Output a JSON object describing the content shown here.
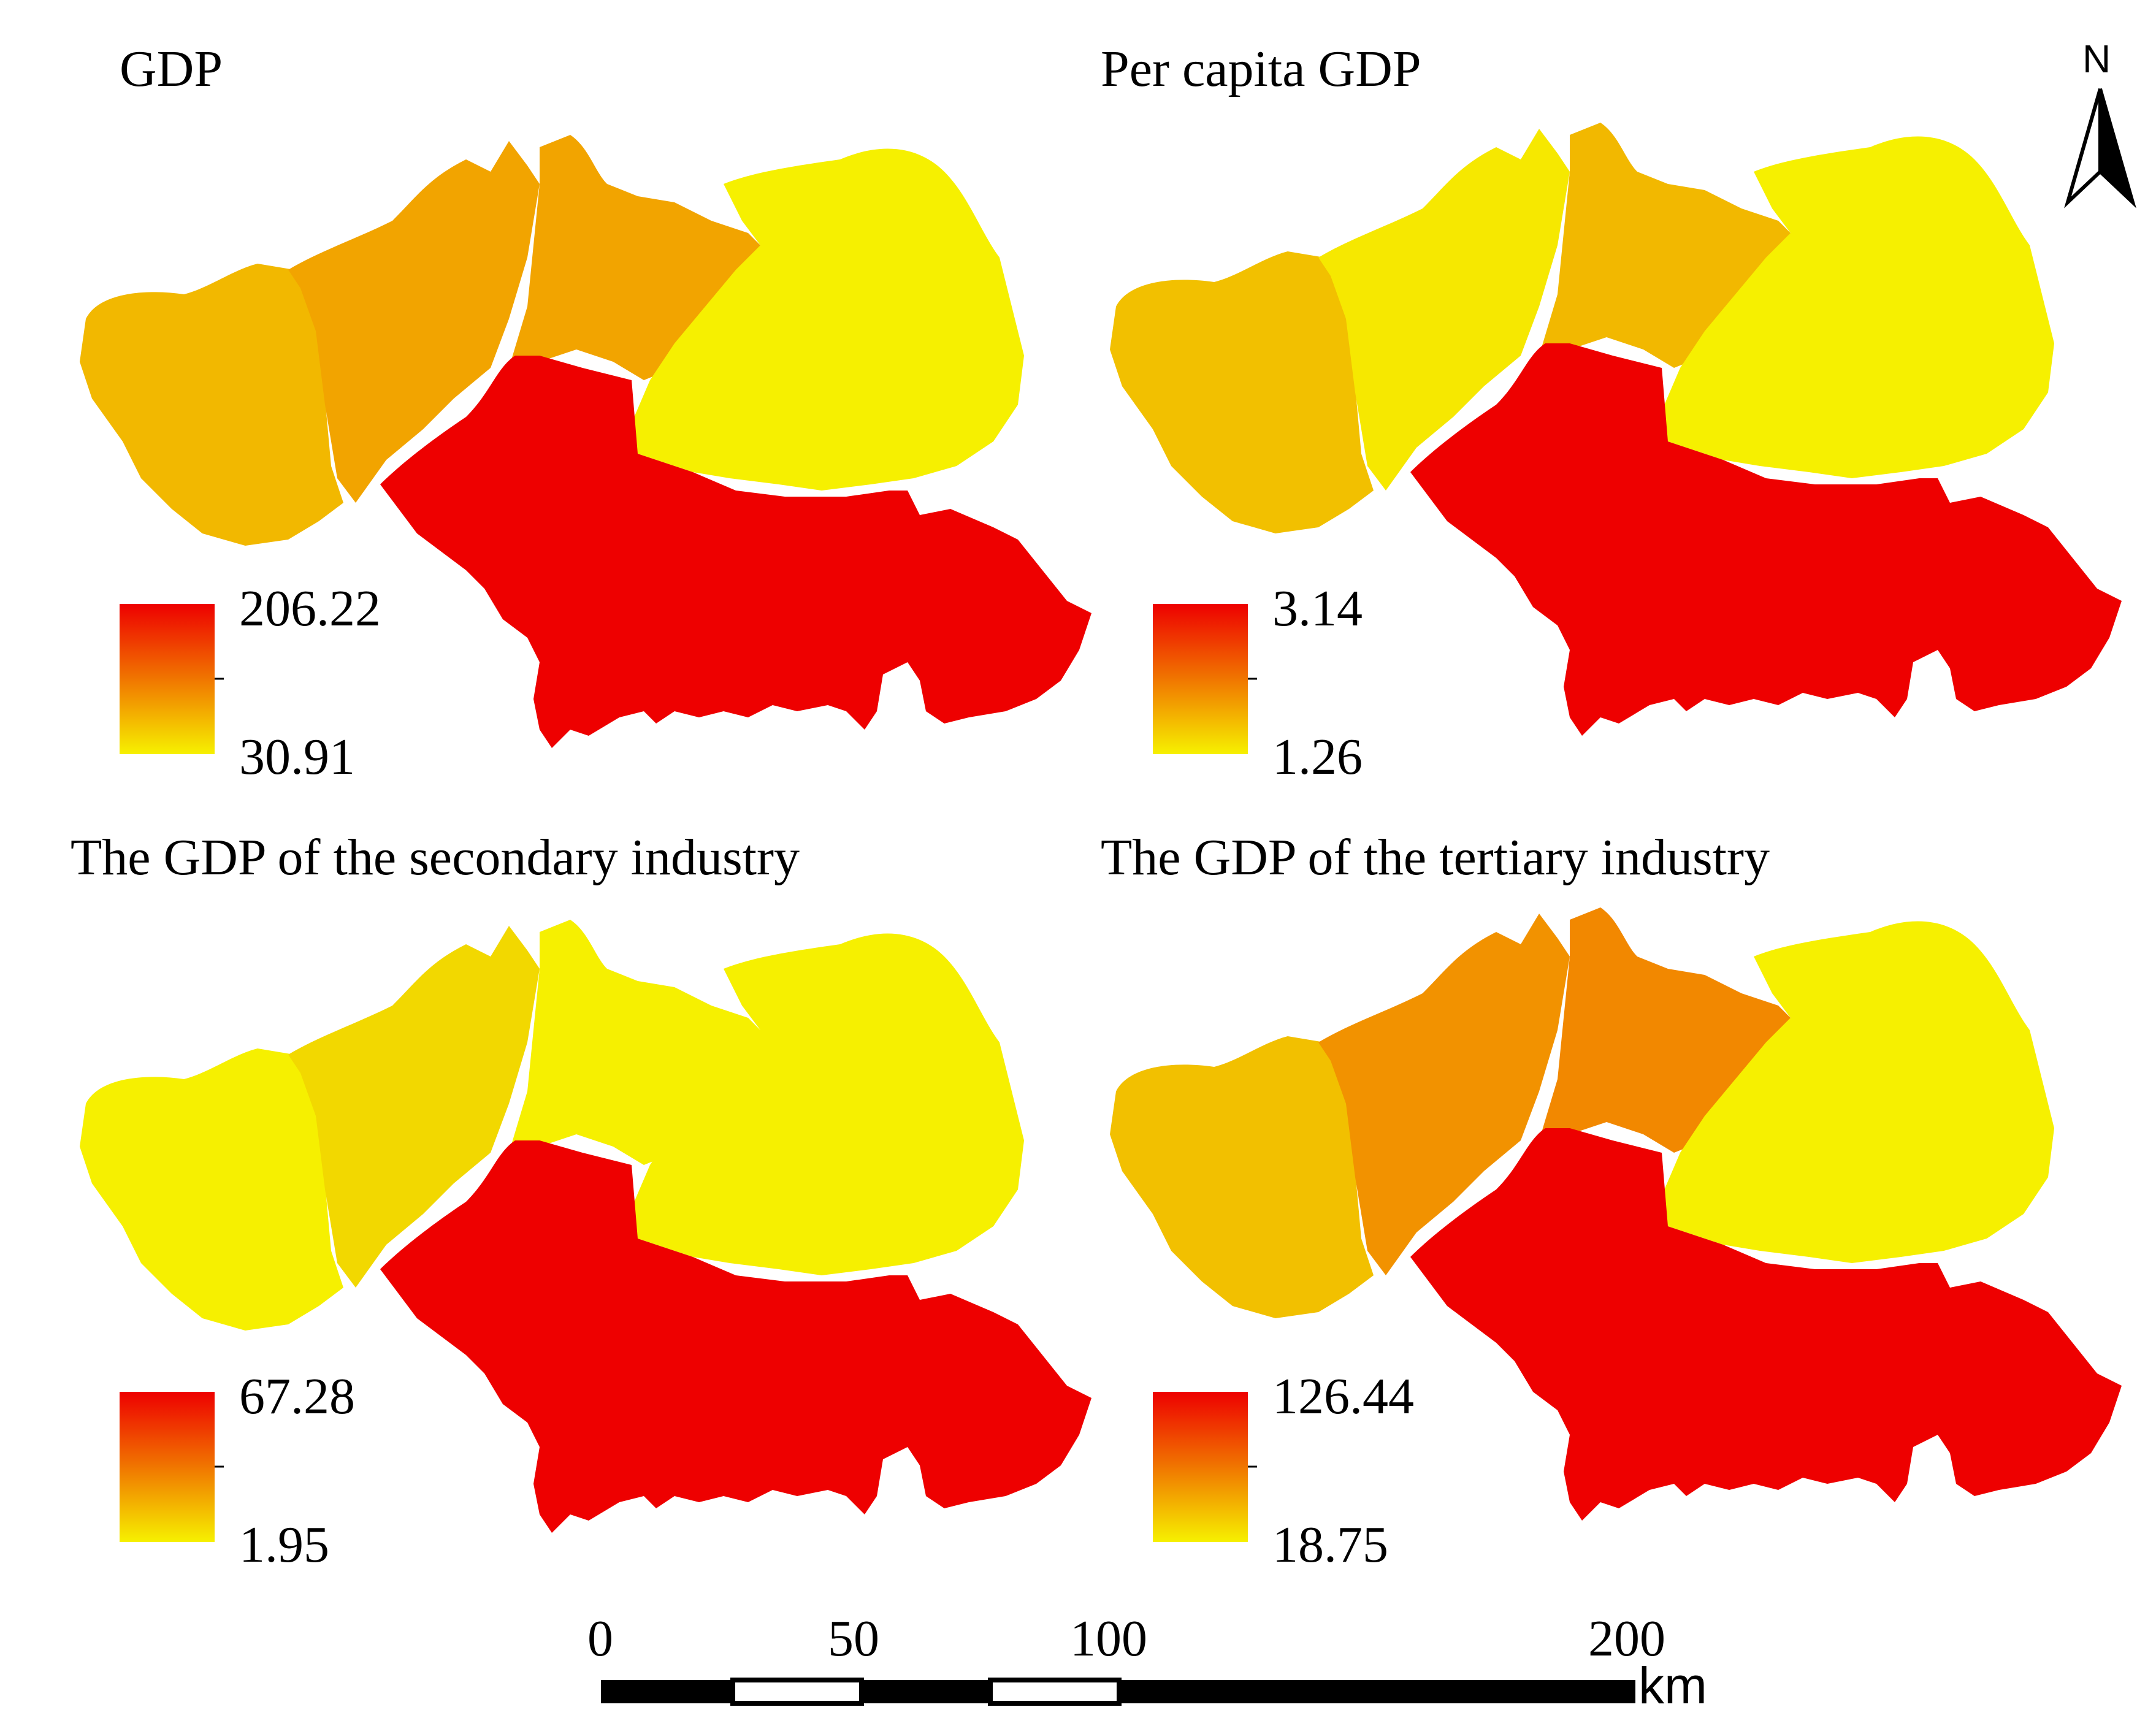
{
  "colors": {
    "high": "#ee0000",
    "mid": "#f39200",
    "low": "#f6f000",
    "scale_black": "#000000",
    "scale_white": "#ffffff"
  },
  "panels": [
    {
      "title": "GDP",
      "legend_max": "206.22",
      "legend_min": "30.91",
      "regions": {
        "west": "#f2b800",
        "west_central": "#f2a400",
        "north_central": "#f2a400",
        "northeast": "#f6f000",
        "south": "#ee0000"
      }
    },
    {
      "title": "Per capita GDP",
      "legend_max": "3.14",
      "legend_min": "1.26",
      "regions": {
        "west": "#f2c000",
        "west_central": "#f6e800",
        "north_central": "#f2b800",
        "northeast": "#f6f000",
        "south": "#ee0000"
      }
    },
    {
      "title": "The GDP of the secondary industry",
      "legend_max": "67.28",
      "legend_min": "1.95",
      "regions": {
        "west": "#f6f000",
        "west_central": "#f2d800",
        "north_central": "#f6f000",
        "northeast": "#f6f000",
        "south": "#ee0000"
      }
    },
    {
      "title": "The GDP of the tertiary industry",
      "legend_max": "126.44",
      "legend_min": "18.75",
      "regions": {
        "west": "#f2c000",
        "west_central": "#f29200",
        "north_central": "#f28800",
        "northeast": "#f6f000",
        "south": "#ee0000"
      }
    }
  ],
  "north_arrow": {
    "label": "N"
  },
  "scale_bar": {
    "ticks": [
      "0",
      "50",
      "100",
      "200"
    ],
    "unit": "km"
  }
}
